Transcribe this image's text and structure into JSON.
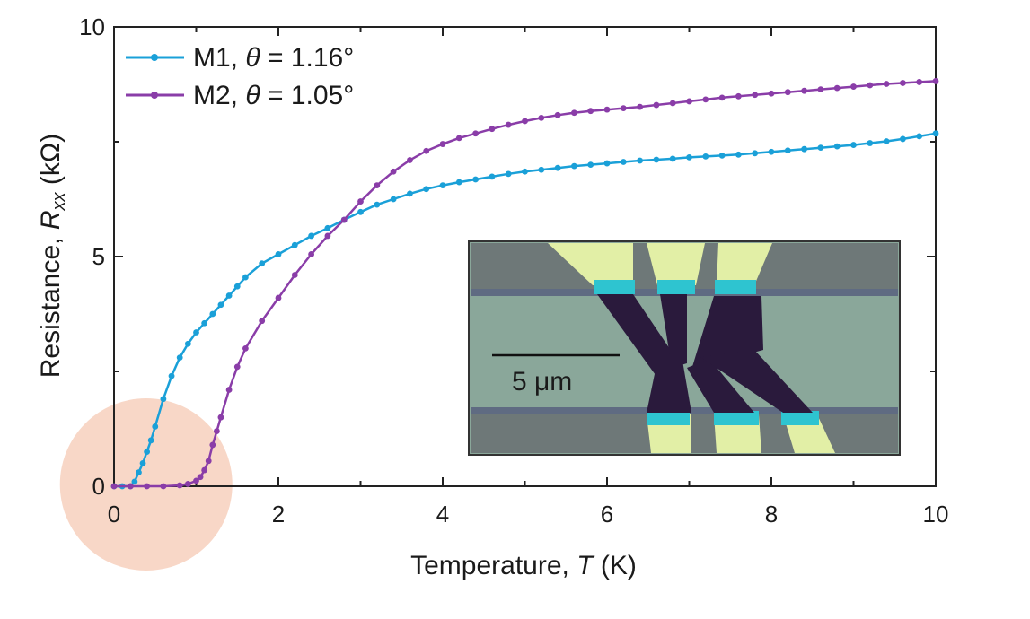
{
  "chart_data": {
    "type": "line",
    "xlabel": {
      "prefix": "Temperature, ",
      "var": "T",
      "suffix": " (K)"
    },
    "ylabel": {
      "prefix": "Resistance, ",
      "var": "R",
      "sub": "xx",
      "suffix": " (kΩ)"
    },
    "xlim": [
      0,
      10
    ],
    "ylim": [
      0,
      10
    ],
    "xticks": [
      0,
      2,
      4,
      6,
      8,
      10
    ],
    "yticks": [
      0,
      5,
      10
    ],
    "legend_position": "top-left",
    "grid": false,
    "series": [
      {
        "name": "M1, θ = 1.16°",
        "name_parts": {
          "label": "M1, ",
          "var": "θ",
          "value": " = 1.16°"
        },
        "color": "#1aa0d8",
        "x": [
          0,
          0.1,
          0.2,
          0.25,
          0.3,
          0.35,
          0.4,
          0.45,
          0.5,
          0.6,
          0.7,
          0.8,
          0.9,
          1.0,
          1.1,
          1.2,
          1.3,
          1.4,
          1.5,
          1.6,
          1.8,
          2.0,
          2.2,
          2.4,
          2.6,
          2.8,
          3.0,
          3.2,
          3.4,
          3.6,
          3.8,
          4.0,
          4.2,
          4.4,
          4.6,
          4.8,
          5.0,
          5.2,
          5.4,
          5.6,
          5.8,
          6.0,
          6.2,
          6.4,
          6.6,
          6.8,
          7.0,
          7.2,
          7.4,
          7.6,
          7.8,
          8.0,
          8.2,
          8.4,
          8.6,
          8.8,
          9.0,
          9.2,
          9.4,
          9.6,
          9.8,
          10.0
        ],
        "y": [
          0,
          0,
          0,
          0.1,
          0.3,
          0.5,
          0.75,
          1.0,
          1.3,
          1.9,
          2.4,
          2.8,
          3.1,
          3.35,
          3.55,
          3.75,
          3.95,
          4.15,
          4.35,
          4.55,
          4.85,
          5.05,
          5.25,
          5.45,
          5.62,
          5.8,
          5.97,
          6.13,
          6.25,
          6.37,
          6.47,
          6.55,
          6.62,
          6.68,
          6.74,
          6.8,
          6.85,
          6.89,
          6.93,
          6.97,
          7.0,
          7.03,
          7.06,
          7.09,
          7.11,
          7.13,
          7.16,
          7.18,
          7.2,
          7.22,
          7.25,
          7.28,
          7.31,
          7.34,
          7.37,
          7.4,
          7.43,
          7.47,
          7.51,
          7.56,
          7.62,
          7.68
        ]
      },
      {
        "name": "M2, θ = 1.05°",
        "name_parts": {
          "label": "M2, ",
          "var": "θ",
          "value": " = 1.05°"
        },
        "color": "#8a3da8",
        "x": [
          0,
          0.2,
          0.4,
          0.6,
          0.8,
          0.9,
          1.0,
          1.05,
          1.1,
          1.15,
          1.2,
          1.25,
          1.3,
          1.4,
          1.5,
          1.6,
          1.8,
          2.0,
          2.2,
          2.4,
          2.6,
          2.8,
          3.0,
          3.2,
          3.4,
          3.6,
          3.8,
          4.0,
          4.2,
          4.4,
          4.6,
          4.8,
          5.0,
          5.2,
          5.4,
          5.6,
          5.8,
          6.0,
          6.2,
          6.4,
          6.6,
          6.8,
          7.0,
          7.2,
          7.4,
          7.6,
          7.8,
          8.0,
          8.2,
          8.4,
          8.6,
          8.8,
          9.0,
          9.2,
          9.4,
          9.6,
          9.8,
          10.0
        ],
        "y": [
          0,
          0,
          0,
          0,
          0.02,
          0.05,
          0.12,
          0.2,
          0.35,
          0.55,
          0.9,
          1.2,
          1.5,
          2.1,
          2.6,
          3.0,
          3.6,
          4.1,
          4.6,
          5.05,
          5.45,
          5.8,
          6.2,
          6.55,
          6.85,
          7.1,
          7.3,
          7.45,
          7.58,
          7.68,
          7.78,
          7.87,
          7.95,
          8.02,
          8.08,
          8.13,
          8.17,
          8.2,
          8.23,
          8.26,
          8.3,
          8.34,
          8.38,
          8.42,
          8.46,
          8.49,
          8.52,
          8.55,
          8.58,
          8.61,
          8.64,
          8.67,
          8.7,
          8.73,
          8.76,
          8.78,
          8.8,
          8.82
        ]
      }
    ],
    "annotations": {
      "highlight_circle": {
        "cx": 0.5,
        "cy": 0,
        "color": "#f6c9b4"
      },
      "inset_scale_bar": "5 μm"
    }
  }
}
